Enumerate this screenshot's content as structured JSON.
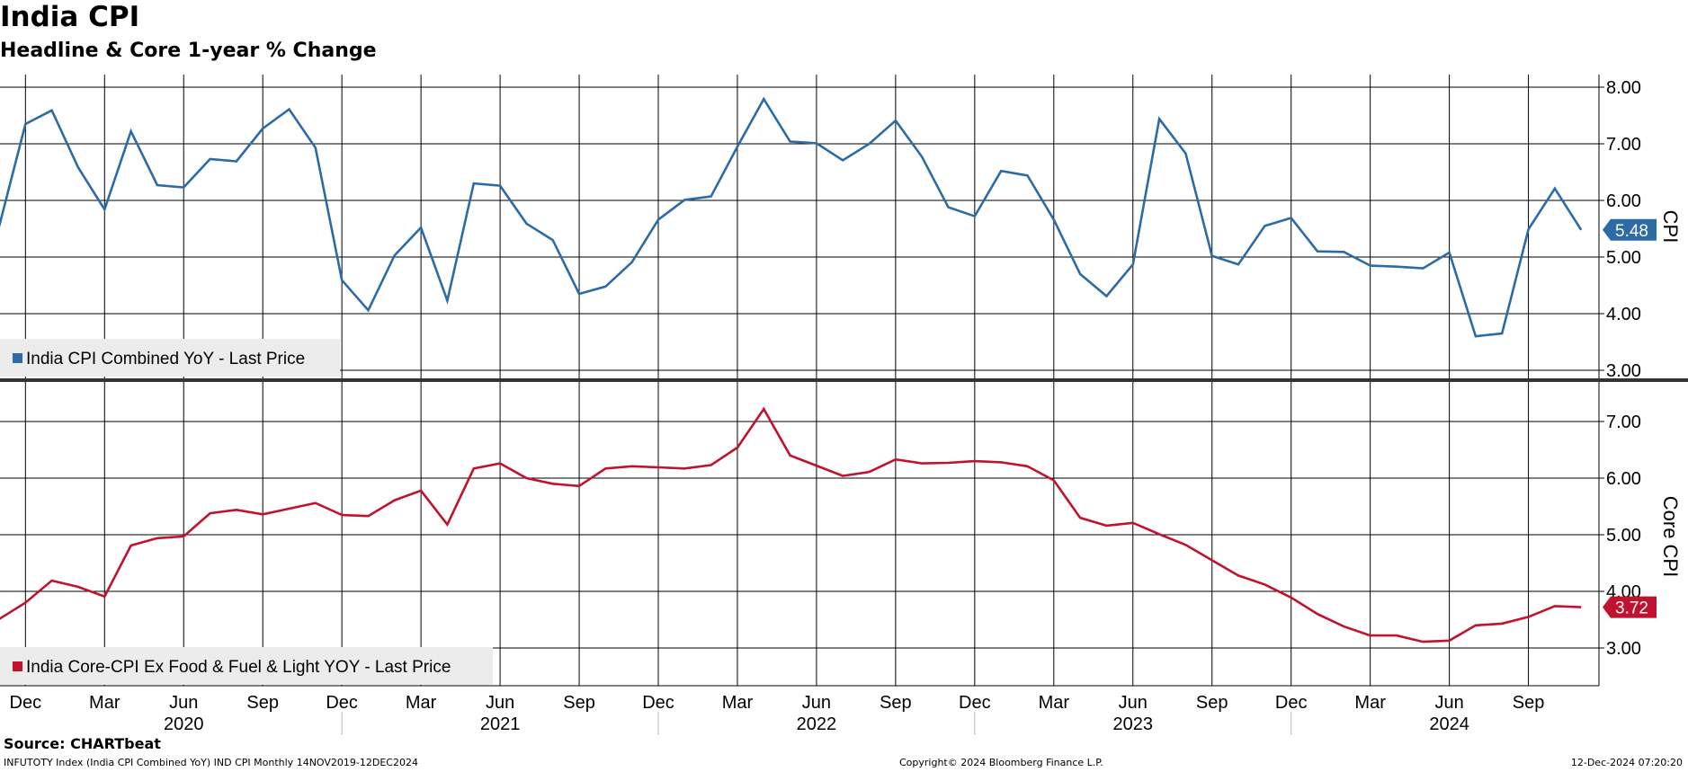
{
  "header": {
    "title": "India CPI",
    "subtitle": "Headline & Core 1-year % Change"
  },
  "footer": {
    "source": "Source: CHARTbeat",
    "ticker_info": "INFUTOTY Index (India CPI Combined YoY) IND CPI  Monthly 14NOV2019-12DEC2024",
    "copyright": "Copyright© 2024 Bloomberg Finance L.P.",
    "timestamp": "12-Dec-2024 07:20:20"
  },
  "colors": {
    "headline": "#2c6ba5",
    "core": "#c0132f",
    "grid": "#000000",
    "legend_bg": "#ececec"
  },
  "chart_data": [
    {
      "type": "line",
      "panel": "top",
      "ylabel": "CPI",
      "ylim": [
        2.9,
        8.2
      ],
      "yticks": [
        "8.00",
        "7.00",
        "6.00",
        "5.00",
        "4.00",
        "3.00"
      ],
      "grid": true,
      "legend": "bottom-left",
      "last_value_label": "5.48",
      "x": [
        "2019-11",
        "2019-12",
        "2020-01",
        "2020-02",
        "2020-03",
        "2020-04",
        "2020-05",
        "2020-06",
        "2020-07",
        "2020-08",
        "2020-09",
        "2020-10",
        "2020-11",
        "2020-12",
        "2021-01",
        "2021-02",
        "2021-03",
        "2021-04",
        "2021-05",
        "2021-06",
        "2021-07",
        "2021-08",
        "2021-09",
        "2021-10",
        "2021-11",
        "2021-12",
        "2022-01",
        "2022-02",
        "2022-03",
        "2022-04",
        "2022-05",
        "2022-06",
        "2022-07",
        "2022-08",
        "2022-09",
        "2022-10",
        "2022-11",
        "2022-12",
        "2023-01",
        "2023-02",
        "2023-03",
        "2023-04",
        "2023-05",
        "2023-06",
        "2023-07",
        "2023-08",
        "2023-09",
        "2023-10",
        "2023-11",
        "2023-12",
        "2024-01",
        "2024-02",
        "2024-03",
        "2024-04",
        "2024-05",
        "2024-06",
        "2024-07",
        "2024-08",
        "2024-09",
        "2024-10",
        "2024-11"
      ],
      "series": [
        {
          "name": "India CPI Combined YoY - Last Price",
          "values": [
            5.54,
            7.35,
            7.59,
            6.58,
            5.84,
            7.22,
            6.27,
            6.23,
            6.73,
            6.69,
            7.27,
            7.61,
            6.93,
            4.59,
            4.06,
            5.03,
            5.52,
            4.23,
            6.3,
            6.26,
            5.59,
            5.3,
            4.35,
            4.48,
            4.91,
            5.66,
            6.01,
            6.07,
            6.95,
            7.79,
            7.04,
            7.01,
            6.71,
            7.0,
            7.41,
            6.77,
            5.88,
            5.72,
            6.52,
            6.44,
            5.66,
            4.7,
            4.31,
            4.87,
            7.44,
            6.83,
            5.02,
            4.87,
            5.55,
            5.69,
            5.1,
            5.09,
            4.85,
            4.83,
            4.8,
            5.08,
            3.6,
            3.65,
            5.49,
            6.21,
            5.48
          ]
        }
      ]
    },
    {
      "type": "line",
      "panel": "bottom",
      "ylabel": "Core CPI",
      "ylim": [
        2.3,
        7.75
      ],
      "yticks": [
        "7.00",
        "6.00",
        "5.00",
        "4.00",
        "3.00"
      ],
      "grid": true,
      "legend": "bottom-left",
      "last_value_label": "3.72",
      "x": [
        "2019-11",
        "2019-12",
        "2020-01",
        "2020-02",
        "2020-03",
        "2020-04",
        "2020-05",
        "2020-06",
        "2020-07",
        "2020-08",
        "2020-09",
        "2020-10",
        "2020-11",
        "2020-12",
        "2021-01",
        "2021-02",
        "2021-03",
        "2021-04",
        "2021-05",
        "2021-06",
        "2021-07",
        "2021-08",
        "2021-09",
        "2021-10",
        "2021-11",
        "2021-12",
        "2022-01",
        "2022-02",
        "2022-03",
        "2022-04",
        "2022-05",
        "2022-06",
        "2022-07",
        "2022-08",
        "2022-09",
        "2022-10",
        "2022-11",
        "2022-12",
        "2023-01",
        "2023-02",
        "2023-03",
        "2023-04",
        "2023-05",
        "2023-06",
        "2023-07",
        "2023-08",
        "2023-09",
        "2023-10",
        "2023-11",
        "2023-12",
        "2024-01",
        "2024-02",
        "2024-03",
        "2024-04",
        "2024-05",
        "2024-06",
        "2024-07",
        "2024-08",
        "2024-09",
        "2024-10",
        "2024-11"
      ],
      "series": [
        {
          "name": "India Core-CPI Ex Food & Fuel & Light YOY - Last Price",
          "values": [
            3.51,
            3.8,
            4.19,
            4.08,
            3.91,
            4.81,
            4.94,
            4.97,
            5.38,
            5.44,
            5.36,
            5.46,
            5.56,
            5.35,
            5.33,
            5.61,
            5.78,
            5.18,
            6.17,
            6.26,
            6.0,
            5.9,
            5.86,
            6.17,
            6.21,
            6.19,
            6.17,
            6.23,
            6.54,
            7.22,
            6.4,
            6.22,
            6.04,
            6.11,
            6.33,
            6.26,
            6.27,
            6.3,
            6.28,
            6.21,
            5.96,
            5.3,
            5.16,
            5.21,
            5.01,
            4.82,
            4.55,
            4.28,
            4.12,
            3.89,
            3.6,
            3.38,
            3.22,
            3.22,
            3.11,
            3.13,
            3.4,
            3.43,
            3.55,
            3.74,
            3.72
          ]
        }
      ]
    }
  ],
  "x_axis": {
    "month_ticks": [
      {
        "date": "2019-12",
        "label": "Dec"
      },
      {
        "date": "2020-03",
        "label": "Mar"
      },
      {
        "date": "2020-06",
        "label": "Jun"
      },
      {
        "date": "2020-09",
        "label": "Sep"
      },
      {
        "date": "2020-12",
        "label": "Dec"
      },
      {
        "date": "2021-03",
        "label": "Mar"
      },
      {
        "date": "2021-06",
        "label": "Jun"
      },
      {
        "date": "2021-09",
        "label": "Sep"
      },
      {
        "date": "2021-12",
        "label": "Dec"
      },
      {
        "date": "2022-03",
        "label": "Mar"
      },
      {
        "date": "2022-06",
        "label": "Jun"
      },
      {
        "date": "2022-09",
        "label": "Sep"
      },
      {
        "date": "2022-12",
        "label": "Dec"
      },
      {
        "date": "2023-03",
        "label": "Mar"
      },
      {
        "date": "2023-06",
        "label": "Jun"
      },
      {
        "date": "2023-09",
        "label": "Sep"
      },
      {
        "date": "2023-12",
        "label": "Dec"
      },
      {
        "date": "2024-03",
        "label": "Mar"
      },
      {
        "date": "2024-06",
        "label": "Jun"
      },
      {
        "date": "2024-09",
        "label": "Sep"
      }
    ],
    "year_labels": [
      {
        "date": "2020-06",
        "label": "2020"
      },
      {
        "date": "2021-06",
        "label": "2021"
      },
      {
        "date": "2022-06",
        "label": "2022"
      },
      {
        "date": "2023-06",
        "label": "2023"
      },
      {
        "date": "2024-06",
        "label": "2024"
      }
    ],
    "year_dividers": [
      "2020-12",
      "2021-12",
      "2022-12",
      "2023-12"
    ]
  }
}
